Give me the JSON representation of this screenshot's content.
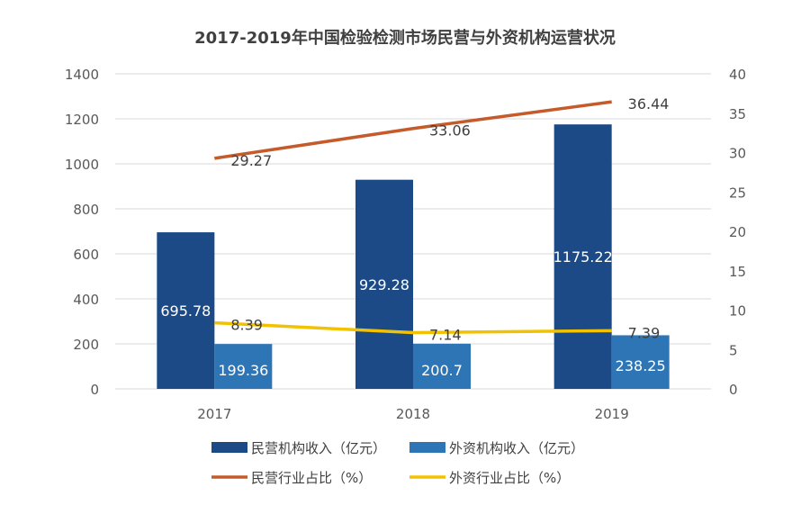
{
  "chart_data": {
    "type": "bar+line",
    "title": "2017-2019年中国检验检测市场民营与外资机构运营状况",
    "categories": [
      "2017",
      "2018",
      "2019"
    ],
    "y_left": {
      "range": [
        0,
        1400
      ],
      "ticks": [
        "0",
        "200",
        "400",
        "600",
        "800",
        "1000",
        "1200",
        "1400"
      ]
    },
    "y_right": {
      "range": [
        0,
        40
      ],
      "ticks": [
        "0",
        "5",
        "10",
        "15",
        "20",
        "25",
        "30",
        "35",
        "40"
      ]
    },
    "grid": true,
    "legend_position": "bottom",
    "series": [
      {
        "name": "民营机构收入（亿元）",
        "type": "bar",
        "axis": "left",
        "color": "#1b4a86",
        "values": [
          695.78,
          929.28,
          1175.22
        ],
        "labels": [
          "695.78",
          "929.28",
          "1175.22"
        ]
      },
      {
        "name": "外资机构收入（亿元）",
        "type": "bar",
        "axis": "left",
        "color": "#2e75b6",
        "values": [
          199.36,
          200.7,
          238.25
        ],
        "labels": [
          "199.36",
          "200.7",
          "238.25"
        ]
      },
      {
        "name": "民营行业占比（%）",
        "type": "line",
        "axis": "right",
        "color": "#c55a2a",
        "values": [
          29.27,
          33.06,
          36.44
        ],
        "labels": [
          "29.27",
          "33.06",
          "36.44"
        ]
      },
      {
        "name": "外资行业占比（%）",
        "type": "line",
        "axis": "right",
        "color": "#f2c200",
        "values": [
          8.39,
          7.14,
          7.39
        ],
        "labels": [
          "8.39",
          "7.14",
          "7.39"
        ]
      }
    ]
  }
}
